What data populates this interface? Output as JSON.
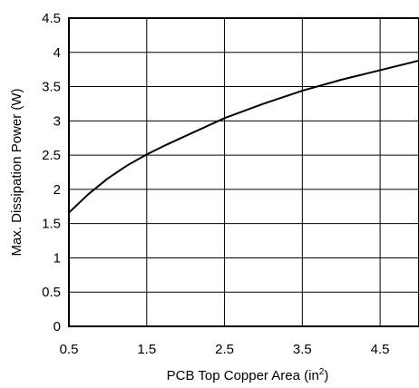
{
  "chart_data": {
    "type": "line",
    "title": "",
    "xlabel": "PCB Top Copper Area (in",
    "xlabel_superscript": "2",
    "xlabel_suffix": ")",
    "ylabel": "Max. Dissipation Power (W)",
    "xlim": [
      0.5,
      5
    ],
    "ylim": [
      0,
      4.5
    ],
    "x_ticks": [
      "0.5",
      "1.5",
      "2.5",
      "3.5",
      "4.5"
    ],
    "y_ticks": [
      "0",
      "0.5",
      "1",
      "1.5",
      "2",
      "2.5",
      "3",
      "3.5",
      "4",
      "4.5"
    ],
    "grid": true,
    "legend": "none",
    "line_color": "#000000",
    "series": [
      {
        "x": [
          0.5,
          0.75,
          1.0,
          1.25,
          1.5,
          1.75,
          2.0,
          2.5,
          3.0,
          3.5,
          4.0,
          4.5,
          5.0
        ],
        "y": [
          1.66,
          1.93,
          2.16,
          2.35,
          2.51,
          2.65,
          2.78,
          3.04,
          3.25,
          3.44,
          3.6,
          3.74,
          3.88
        ]
      }
    ]
  }
}
